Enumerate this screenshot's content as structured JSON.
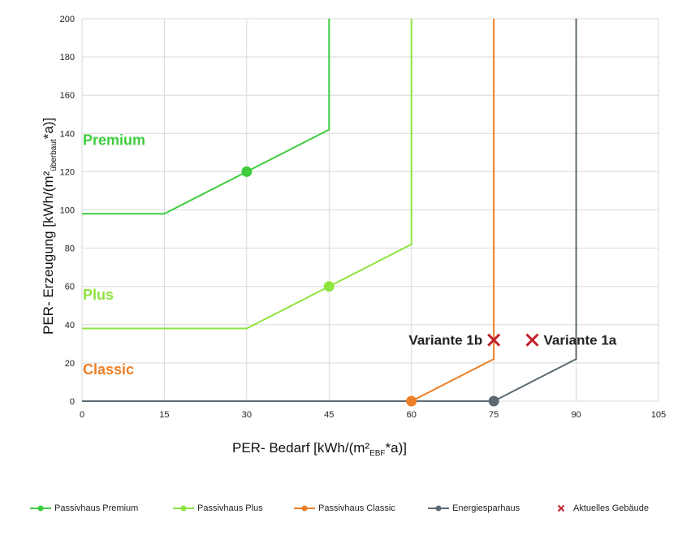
{
  "colors": {
    "premium": "#3fcc3f",
    "plus": "#8fe43f",
    "classic": "#ee7f26",
    "energiespar": "#5e6a72",
    "aktuell": "#c0232b",
    "grid": "#d9d9d9"
  },
  "chart_data": {
    "type": "line",
    "xlabel": "PER- Bedarf [kWh/(m²",
    "xlabel_sub": "EBF",
    "xlabel_end": "*a)]",
    "ylabel": "PER- Erzeugung [kWh/(m²",
    "ylabel_sub": "überbaut",
    "ylabel_end": "*a)]",
    "xlim": [
      0,
      105
    ],
    "ylim": [
      0,
      200
    ],
    "xticks": [
      0,
      15,
      30,
      45,
      60,
      75,
      90,
      105
    ],
    "yticks": [
      0,
      20,
      40,
      60,
      80,
      100,
      120,
      140,
      160,
      180,
      200
    ],
    "grid": true,
    "legend_position": "bottom",
    "series": [
      {
        "name": "Passivhaus Premium",
        "color_key": "premium",
        "x": [
          0,
          15,
          45,
          45
        ],
        "y": [
          98,
          98,
          142,
          200
        ],
        "marker": {
          "x": 30,
          "y": 120
        }
      },
      {
        "name": "Passivhaus Plus",
        "color_key": "plus",
        "x": [
          0,
          30,
          60,
          60
        ],
        "y": [
          38,
          38,
          82,
          200
        ],
        "marker": {
          "x": 45,
          "y": 60
        }
      },
      {
        "name": "Passivhaus Classic",
        "color_key": "classic",
        "x": [
          0,
          60,
          75,
          75
        ],
        "y": [
          0,
          0,
          22,
          200
        ],
        "marker": {
          "x": 60,
          "y": 0
        }
      },
      {
        "name": "Energiesparhaus",
        "color_key": "energiespar",
        "x": [
          0,
          75,
          90,
          90
        ],
        "y": [
          0,
          0,
          22,
          200
        ],
        "marker": {
          "x": 75,
          "y": 0
        }
      }
    ],
    "points": {
      "name": "Aktuelles Gebäude",
      "color_key": "aktuell",
      "items": [
        {
          "label": "Variante 1b",
          "x": 75,
          "y": 32,
          "label_side": "left"
        },
        {
          "label": "Variante 1a",
          "x": 82,
          "y": 32,
          "label_side": "right"
        }
      ]
    },
    "zone_labels": [
      {
        "text": "Premium",
        "x": 0,
        "y": 134,
        "color_key": "premium"
      },
      {
        "text": "Plus",
        "x": 0,
        "y": 53,
        "color_key": "plus"
      },
      {
        "text": "Classic",
        "x": 0,
        "y": 14,
        "color_key": "classic"
      }
    ]
  }
}
